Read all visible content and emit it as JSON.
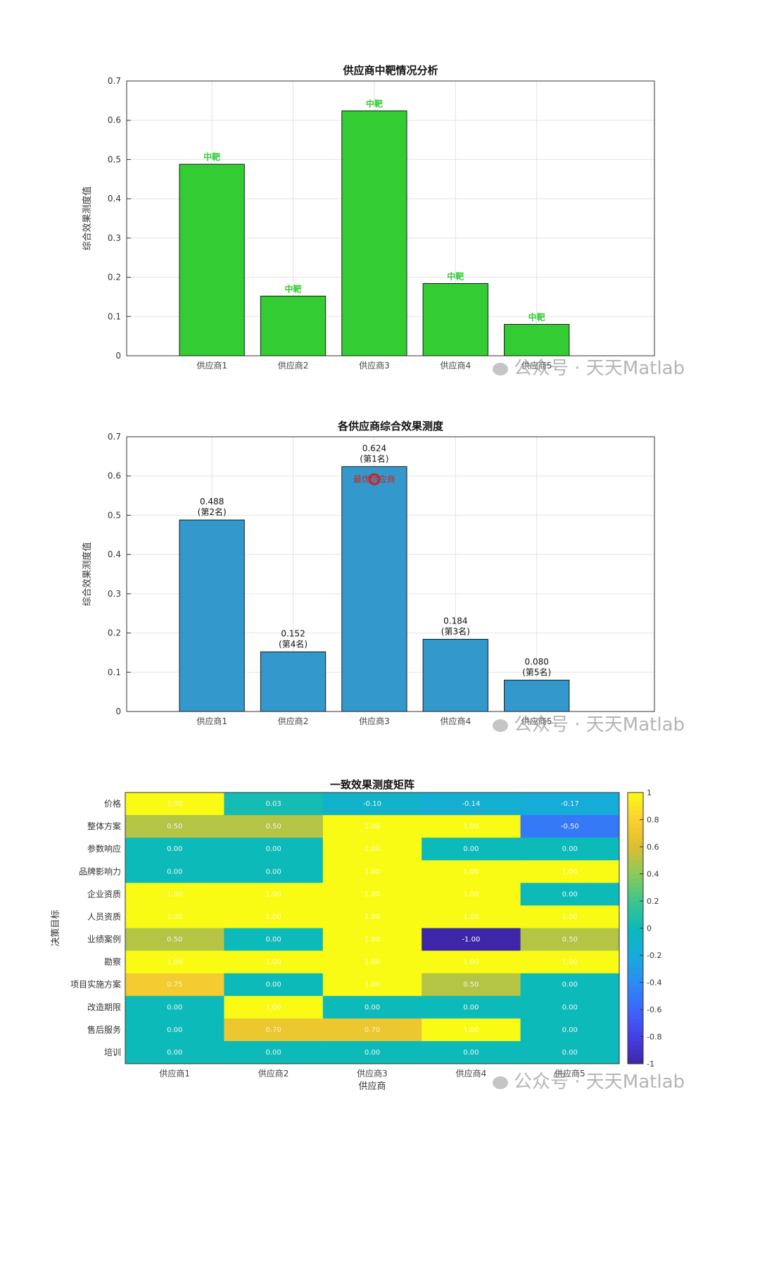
{
  "watermark": "公众号 · 天天Matlab",
  "chart_data": [
    {
      "type": "bar",
      "title": "供应商中靶情况分析",
      "ylabel": "综合效果测度值",
      "xlabel": "",
      "categories": [
        "供应商1",
        "供应商2",
        "供应商3",
        "供应商4",
        "供应商5"
      ],
      "values": [
        0.488,
        0.152,
        0.624,
        0.184,
        0.08
      ],
      "bar_labels": [
        "中靶",
        "中靶",
        "中靶",
        "中靶",
        "中靶"
      ],
      "ylim": [
        0,
        0.7
      ],
      "yticks": [
        "0",
        "0.1",
        "0.2",
        "0.3",
        "0.4",
        "0.5",
        "0.6",
        "0.7"
      ],
      "grid": true,
      "bar_color": "#33cc33",
      "label_color": "#33cc33"
    },
    {
      "type": "bar",
      "title": "各供应商综合效果测度",
      "ylabel": "综合效果测度值",
      "xlabel": "",
      "categories": [
        "供应商1",
        "供应商2",
        "供应商3",
        "供应商4",
        "供应商5"
      ],
      "values": [
        0.488,
        0.152,
        0.624,
        0.184,
        0.08
      ],
      "value_labels": [
        "0.488",
        "0.152",
        "0.624",
        "0.184",
        "0.080"
      ],
      "rank_labels": [
        "(第2名)",
        "(第4名)",
        "(第1名)",
        "(第3名)",
        "(第5名)"
      ],
      "annotation": "最优供应商",
      "annotation_color": "#cc2222",
      "ylim": [
        0,
        0.7
      ],
      "yticks": [
        "0",
        "0.1",
        "0.2",
        "0.3",
        "0.4",
        "0.5",
        "0.6",
        "0.7"
      ],
      "grid": true,
      "bar_color": "#3399cc"
    },
    {
      "type": "heatmap",
      "title": "一致效果测度矩阵",
      "xlabel": "供应商",
      "ylabel": "决策目标",
      "x": [
        "供应商1",
        "供应商2",
        "供应商3",
        "供应商4",
        "供应商5"
      ],
      "y": [
        "价格",
        "整体方案",
        "参数响应",
        "品牌影响力",
        "企业资质",
        "人员资质",
        "业绩案例",
        "勘察",
        "项目实施方案",
        "改造期限",
        "售后服务",
        "培训"
      ],
      "values": [
        [
          1.0,
          0.03,
          -0.1,
          -0.14,
          -0.17
        ],
        [
          0.5,
          0.5,
          1.0,
          1.0,
          -0.5
        ],
        [
          0.0,
          0.0,
          1.0,
          0.0,
          0.0
        ],
        [
          0.0,
          0.0,
          1.0,
          1.0,
          1.0
        ],
        [
          1.0,
          1.0,
          1.0,
          1.0,
          0.0
        ],
        [
          1.0,
          1.0,
          1.0,
          1.0,
          1.0
        ],
        [
          0.5,
          0.0,
          1.0,
          -1.0,
          0.5
        ],
        [
          1.0,
          1.0,
          1.0,
          1.0,
          1.0
        ],
        [
          0.75,
          0.0,
          1.0,
          0.5,
          0.0
        ],
        [
          0.0,
          1.0,
          0.0,
          0.0,
          0.0
        ],
        [
          0.0,
          0.7,
          0.7,
          1.0,
          0.0
        ],
        [
          0.0,
          0.0,
          0.0,
          0.0,
          0.0
        ]
      ],
      "colorbar_ticks": [
        "1",
        "0.8",
        "0.6",
        "0.4",
        "0.2",
        "0",
        "-0.2",
        "-0.4",
        "-0.6",
        "-0.8",
        "-1"
      ],
      "clim": [
        -1,
        1
      ],
      "colormap": "parula"
    }
  ]
}
